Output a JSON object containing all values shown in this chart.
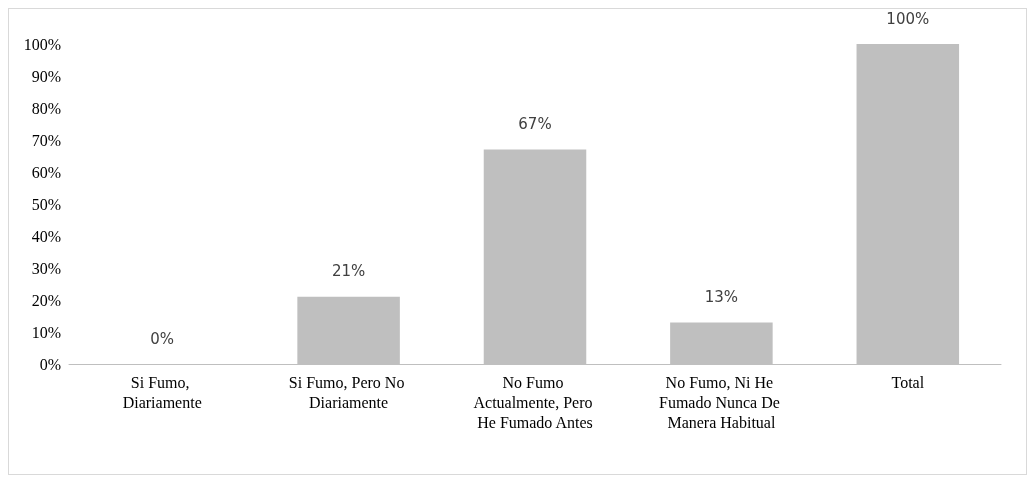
{
  "chart_data": {
    "type": "bar",
    "categories": [
      "Si Fumo, Diariamente",
      "Si Fumo, Pero No Diariamente",
      "No Fumo Actualmente, Pero He Fumado Antes",
      "No Fumo, Ni He Fumado Nunca De Manera Habitual",
      "Total"
    ],
    "values": [
      0,
      21,
      67,
      13,
      100
    ],
    "color": "#bfbfbf",
    "value_labels": [
      "0%",
      "21%",
      "67%",
      "13%",
      "100%"
    ],
    "ylim": [
      0,
      100
    ],
    "yticks": [
      {
        "value": 0,
        "label": "0%"
      },
      {
        "value": 10,
        "label": "10%"
      },
      {
        "value": 20,
        "label": "20%"
      },
      {
        "value": 30,
        "label": "30%"
      },
      {
        "value": 40,
        "label": "40%"
      },
      {
        "value": 50,
        "label": "50%"
      },
      {
        "value": 60,
        "label": "60%"
      },
      {
        "value": 70,
        "label": "70%"
      },
      {
        "value": 80,
        "label": "80%"
      },
      {
        "value": 90,
        "label": "90%"
      },
      {
        "value": 100,
        "label": "100%"
      }
    ],
    "grid": false
  }
}
